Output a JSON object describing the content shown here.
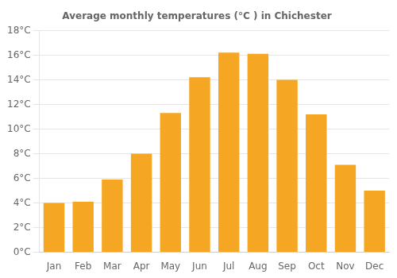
{
  "chart_data": {
    "type": "bar",
    "title": "Average monthly temperatures (°C ) in Chichester",
    "categories": [
      "Jan",
      "Feb",
      "Mar",
      "Apr",
      "May",
      "Jun",
      "Jul",
      "Aug",
      "Sep",
      "Oct",
      "Nov",
      "Dec"
    ],
    "values": [
      4.0,
      4.1,
      5.9,
      8.0,
      11.3,
      14.2,
      16.2,
      16.1,
      14.0,
      11.2,
      7.1,
      5.0
    ],
    "color": "#F5A623",
    "ylim": [
      0,
      18
    ],
    "yticks": [
      {
        "value": 0,
        "label": "0°C"
      },
      {
        "value": 2,
        "label": "2°C"
      },
      {
        "value": 4,
        "label": "4°C"
      },
      {
        "value": 6,
        "label": "6°C"
      },
      {
        "value": 8,
        "label": "8°C"
      },
      {
        "value": 10,
        "label": "10°C"
      },
      {
        "value": 12,
        "label": "12°C"
      },
      {
        "value": 14,
        "label": "14°C"
      },
      {
        "value": 16,
        "label": "16°C"
      },
      {
        "value": 18,
        "label": "18°C"
      }
    ],
    "grid": true
  }
}
